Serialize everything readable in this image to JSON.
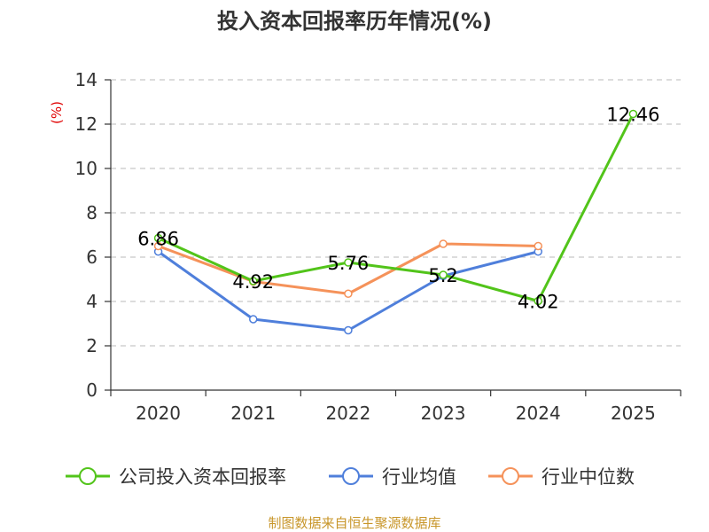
{
  "chart_data": {
    "type": "line",
    "title": "投入资本回报率历年情况(%)",
    "ylabel": "(%)",
    "xlabel": "",
    "categories": [
      "2020",
      "2021",
      "2022",
      "2023",
      "2024",
      "2025"
    ],
    "ylim": [
      0,
      14
    ],
    "yticks": [
      0,
      2,
      4,
      6,
      8,
      10,
      12,
      14
    ],
    "grid": true,
    "legend_position": "bottom",
    "series": [
      {
        "name": "公司投入资本回报率",
        "color": "#52c41a",
        "values": [
          6.86,
          4.92,
          5.76,
          5.2,
          4.02,
          12.46
        ],
        "labels": [
          "6.86",
          "4.92",
          "5.76",
          "5.2",
          "4.02",
          "12.46"
        ]
      },
      {
        "name": "行业均值",
        "color": "#4f7fdb",
        "values": [
          6.25,
          3.2,
          2.7,
          5.15,
          6.25,
          null
        ]
      },
      {
        "name": "行业中位数",
        "color": "#f5925a",
        "values": [
          6.5,
          4.9,
          4.35,
          6.6,
          6.5,
          null
        ]
      }
    ],
    "source": "制图数据来自恒生聚源数据库"
  }
}
